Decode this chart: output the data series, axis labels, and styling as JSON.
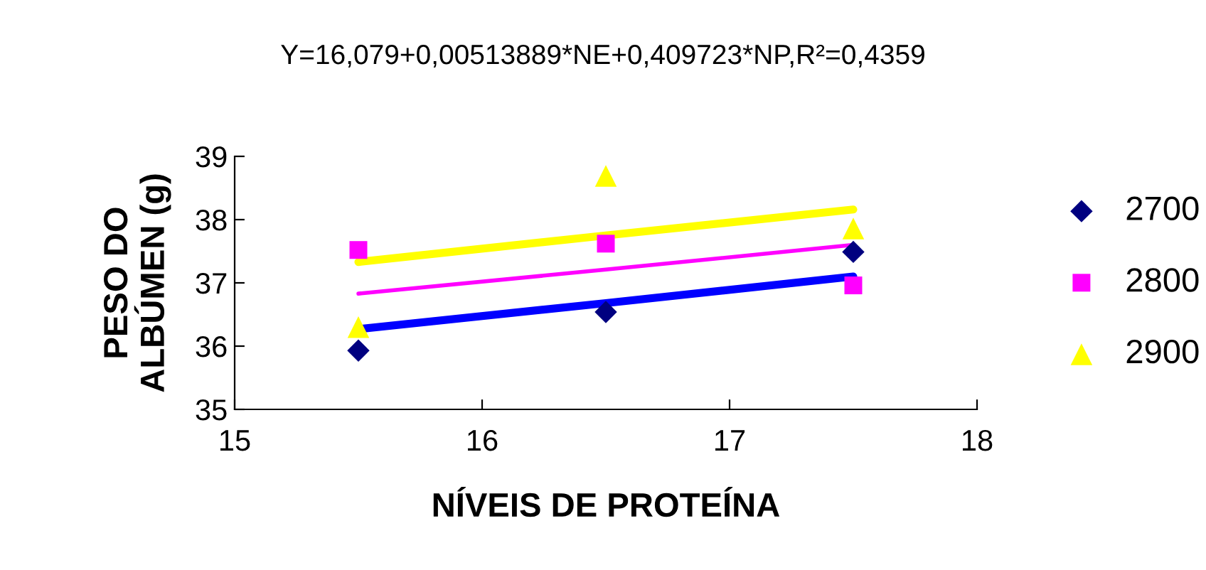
{
  "chart_data": {
    "type": "scatter",
    "title": "Y=16,079+0,00513889*NE+0,409723*NP,R²=0,4359",
    "xlabel": "NÍVEIS DE PROTEÍNA",
    "ylabel": "PESO DO\nALBÚMEN (g)",
    "x": [
      15.5,
      16.5,
      17.5
    ],
    "series": [
      {
        "name": "2700",
        "color": "#000080",
        "marker": "diamond",
        "values": [
          35.93,
          36.54,
          37.49
        ]
      },
      {
        "name": "2800",
        "color": "#ff00ff",
        "marker": "square",
        "values": [
          37.52,
          37.62,
          36.96
        ]
      },
      {
        "name": "2900",
        "color": "#ffff00",
        "marker": "triangle",
        "values": [
          36.3,
          38.69,
          37.86
        ]
      },
      {
        "type": "line",
        "color": "#0000ff",
        "values": [
          36.27,
          36.68,
          37.1
        ],
        "marker": "none"
      },
      {
        "type": "line",
        "color": "#ff00ff",
        "values": [
          36.83,
          37.21,
          37.6
        ],
        "marker": "none"
      },
      {
        "type": "line",
        "color": "#ffff00",
        "values": [
          37.33,
          37.75,
          38.16
        ],
        "marker": "none"
      }
    ],
    "xlim": [
      15,
      18
    ],
    "xticks": [
      15,
      16,
      17,
      18
    ],
    "ylim": [
      35,
      39
    ],
    "yticks": [
      35,
      36,
      37,
      38,
      39
    ],
    "grid": false,
    "legend": "right"
  }
}
